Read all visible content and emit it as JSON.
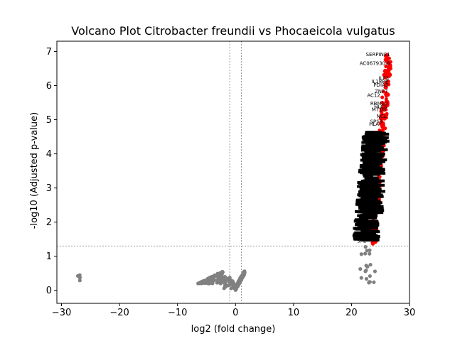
{
  "chart_data": {
    "type": "scatter",
    "title": "Volcano Plot Citrobacter freundii vs Phocaeicola vulgatus",
    "xlabel": "log2 (fold change)",
    "ylabel": "-log10 (Adjusted p-value)",
    "xlim": [
      -30.8,
      30
    ],
    "ylim": [
      -0.38,
      7.3
    ],
    "xticks": [
      -30,
      -20,
      -10,
      0,
      10,
      20,
      30
    ],
    "yticks": [
      0,
      1,
      2,
      3,
      4,
      5,
      6,
      7
    ],
    "grid": false,
    "threshold_lines": {
      "x": [
        -1,
        1
      ],
      "y": 1.3
    },
    "colors": {
      "significant": "#ff0000",
      "not_significant": "#808080",
      "threshold": "#808080"
    },
    "significant_range": {
      "x": [
        23.2,
        27.0
      ],
      "y": [
        1.35,
        6.92
      ]
    },
    "notsig_groups": [
      {
        "x": [
          -27.3,
          -26.6
        ],
        "y": [
          0.22,
          0.45
        ]
      },
      {
        "x": [
          -6.5,
          -0.6
        ],
        "y": [
          0.0,
          0.75
        ]
      },
      {
        "x": [
          -0.6,
          1.6
        ],
        "y": [
          0.0,
          0.65
        ]
      },
      {
        "x": [
          21.5,
          24.3
        ],
        "y": [
          0.22,
          1.3
        ]
      }
    ],
    "labeled_genes": [
      {
        "label": "SERPINE1",
        "x": 26.9,
        "y": 6.92
      },
      {
        "label": "AC067930.8",
        "x": 26.9,
        "y": 6.65
      },
      {
        "label": "ILF3",
        "x": 26.7,
        "y": 6.22
      },
      {
        "label": "IL18BP",
        "x": 26.6,
        "y": 6.12
      },
      {
        "label": "PDIA3",
        "x": 26.6,
        "y": 6.02
      },
      {
        "label": "ZNF7",
        "x": 26.5,
        "y": 5.83
      },
      {
        "label": "AC12",
        "x": 25.2,
        "y": 5.72
      },
      {
        "label": "RBM10",
        "x": 26.5,
        "y": 5.48
      },
      {
        "label": "HLCS",
        "x": 26.4,
        "y": 5.39
      },
      {
        "label": "MT1G",
        "x": 26.2,
        "y": 5.3
      },
      {
        "label": "NCL",
        "x": 26.3,
        "y": 5.1
      },
      {
        "label": "SPS3",
        "x": 25.6,
        "y": 4.95
      },
      {
        "label": "HLA",
        "x": 25.0,
        "y": 4.88
      },
      {
        "label": "CTSS",
        "x": 25.5,
        "y": 4.52
      },
      {
        "label": "AC03",
        "x": 24.3,
        "y": 4.38
      },
      {
        "label": "COL",
        "x": 24.2,
        "y": 3.68
      },
      {
        "label": "CDK",
        "x": 23.8,
        "y": 3.58
      },
      {
        "label": "DDX",
        "x": 24.0,
        "y": 3.2
      },
      {
        "label": "AD0",
        "x": 23.3,
        "y": 3.05
      },
      {
        "label": "CAS",
        "x": 23.5,
        "y": 2.85
      },
      {
        "label": "ACT",
        "x": 23.5,
        "y": 2.65
      },
      {
        "label": "ATF",
        "x": 23.2,
        "y": 2.35
      },
      {
        "label": "ALB",
        "x": 23.1,
        "y": 2.15
      },
      {
        "label": "SLC",
        "x": 22.5,
        "y": 2.0
      },
      {
        "label": "ATP",
        "x": 23.3,
        "y": 1.62
      },
      {
        "label": "SPE",
        "x": 22.8,
        "y": 1.45
      }
    ]
  }
}
